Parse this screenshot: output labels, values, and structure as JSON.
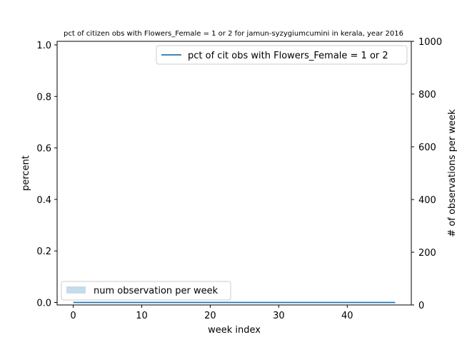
{
  "chart_data": {
    "type": "line",
    "title": "pct of citizen obs with Flowers_Female = 1 or 2 for jamun-syzygiumcumini in kerala, year 2016",
    "xlabel": "week index",
    "ylabel": "percent",
    "y2label": "# of observations per week",
    "xlim": [
      -2.35,
      49.35
    ],
    "ylim": [
      0,
      1.0
    ],
    "y2lim": [
      0,
      1000
    ],
    "xticks": [
      0,
      10,
      20,
      30,
      40
    ],
    "yticks": [
      0.0,
      0.2,
      0.4,
      0.6,
      0.8,
      1.0
    ],
    "y2ticks": [
      0,
      200,
      400,
      600,
      800,
      1000
    ],
    "x": [
      0,
      1,
      2,
      3,
      4,
      5,
      6,
      7,
      8,
      9,
      10,
      11,
      12,
      13,
      14,
      15,
      16,
      17,
      18,
      19,
      20,
      21,
      22,
      23,
      24,
      25,
      26,
      27,
      28,
      29,
      30,
      31,
      32,
      33,
      34,
      35,
      36,
      37,
      38,
      39,
      40,
      41,
      42,
      43,
      44,
      45,
      46,
      47
    ],
    "series": [
      {
        "name": "pct of cit obs with Flowers_Female = 1 or 2",
        "axis": "left",
        "kind": "line",
        "color": "#1f77b4",
        "values": [
          0,
          0,
          0,
          0,
          0,
          0,
          0,
          0,
          0,
          0,
          0,
          0,
          0,
          0,
          0,
          0,
          0,
          0,
          0,
          0,
          0,
          0,
          0,
          0,
          0,
          0,
          0,
          0,
          0,
          0,
          0,
          0,
          0,
          0,
          0,
          0,
          0,
          0,
          0,
          0,
          0,
          0,
          0,
          0,
          0,
          0,
          0,
          0
        ]
      },
      {
        "name": "num observation per week",
        "axis": "right",
        "kind": "area",
        "color": "#aecde3",
        "values": [
          0,
          0,
          0,
          0,
          0,
          0,
          0,
          0,
          0,
          0,
          0,
          0,
          0,
          0,
          0,
          0,
          0,
          0,
          0,
          0,
          0,
          0,
          0,
          0,
          0,
          0,
          0,
          0,
          0,
          0,
          0,
          0,
          0,
          0,
          0,
          0,
          0,
          0,
          0,
          0,
          0,
          0,
          0,
          0,
          0,
          0,
          0,
          0
        ]
      }
    ],
    "legend_line_placement": "upper-right",
    "legend_area_placement": "lower-left",
    "grid": false
  }
}
